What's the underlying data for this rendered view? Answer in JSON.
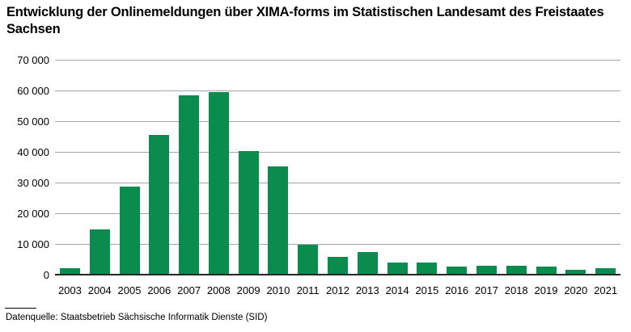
{
  "title": "Entwicklung der Onlinemeldungen über XIMA-forms im Statistischen Landesamt des Freistaates Sachsen",
  "source_note": "Datenquelle: Staatsbetrieb Sächsische Informatik Dienste (SID)",
  "colors": {
    "bar": "#0a8c4e",
    "gridline": "#a5a5a5",
    "axis": "#262626",
    "text": "#000000",
    "background": "#ffffff"
  },
  "chart_data": {
    "type": "bar",
    "categories": [
      "2003",
      "2004",
      "2005",
      "2006",
      "2007",
      "2008",
      "2009",
      "2010",
      "2011",
      "2012",
      "2013",
      "2014",
      "2015",
      "2016",
      "2017",
      "2018",
      "2019",
      "2020",
      "2021"
    ],
    "values": [
      2000,
      14800,
      28600,
      45500,
      58400,
      59500,
      40200,
      35200,
      9800,
      5800,
      7300,
      3900,
      3900,
      2700,
      2900,
      2900,
      2500,
      1600,
      2000
    ],
    "title": "Entwicklung der Onlinemeldungen über XIMA-forms im Statistischen Landesamt des Freistaates Sachsen",
    "xlabel": "",
    "ylabel": "",
    "ylim": [
      0,
      70000
    ],
    "ytick_step": 10000,
    "ytick_labels": [
      "0",
      "10 000",
      "20 000",
      "30 000",
      "40 000",
      "50 000",
      "60 000",
      "70 000"
    ],
    "grid": true,
    "legend": false
  }
}
